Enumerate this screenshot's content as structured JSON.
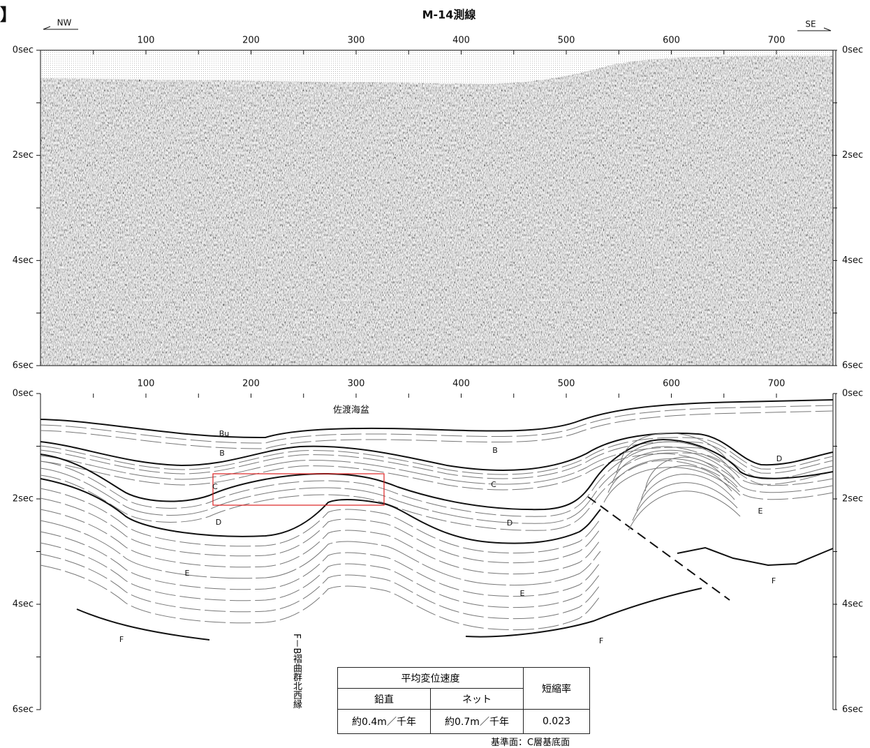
{
  "header": {
    "mark": "】",
    "title": "M-14測線",
    "left_direction": "NW",
    "right_direction": "SE"
  },
  "axes": {
    "x_ticks": [
      "100",
      "200",
      "300",
      "400",
      "500",
      "600",
      "700"
    ],
    "y_ticks": [
      "0sec",
      "2sec",
      "4sec",
      "6sec"
    ]
  },
  "interpretation": {
    "basin": "佐渡海盆",
    "layers": [
      "Bu",
      "B",
      "B",
      "C",
      "C",
      "D",
      "D",
      "D",
      "E",
      "E",
      "E",
      "F",
      "F",
      "F"
    ],
    "fault_label": "F－B褶曲群北西縁"
  },
  "table": {
    "header": [
      "平均変位速度",
      "短縮率"
    ],
    "subheader": [
      "鉛直",
      "ネット"
    ],
    "row": [
      "約0.4m／千年",
      "約0.7m／千年",
      "0.023"
    ],
    "note": "基準面：C層基底面"
  }
}
